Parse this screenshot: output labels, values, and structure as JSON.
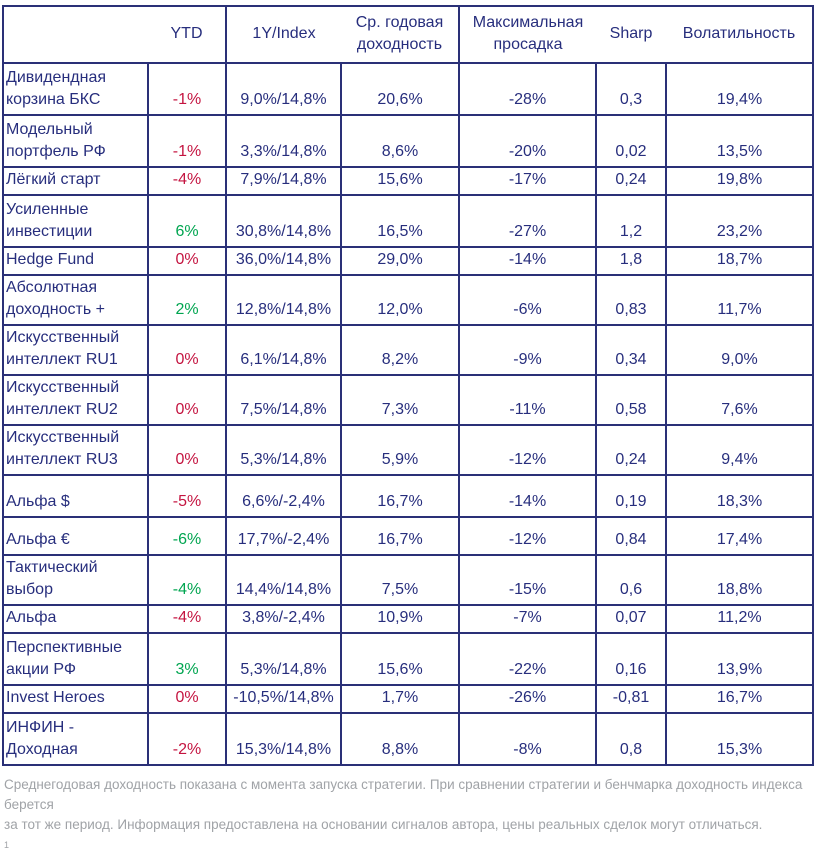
{
  "header": {
    "columns": [
      {
        "label": ""
      },
      {
        "label": "YTD"
      },
      {
        "label": "1Y/Index"
      },
      {
        "label": "Ср. годовая\nдоходность"
      },
      {
        "label": "Максимальная\nпросадка"
      },
      {
        "label": "Sharp"
      },
      {
        "label": "Волатильность"
      }
    ]
  },
  "rows": [
    {
      "name": "Дивидендная\nкорзина БКС",
      "ytd": "-1%",
      "ytd_color": "red",
      "one_year_vs_index": "9,0%/14,8%",
      "avg_annual_return": "20,6%",
      "max_drawdown": "-28%",
      "sharp": "0,3",
      "volatility": "19,4%"
    },
    {
      "name": "Модельный\nпортфель РФ",
      "ytd": "-1%",
      "ytd_color": "red",
      "one_year_vs_index": "3,3%/14,8%",
      "avg_annual_return": "8,6%",
      "max_drawdown": "-20%",
      "sharp": "0,02",
      "volatility": "13,5%"
    },
    {
      "name": "Лёгкий старт",
      "ytd": "-4%",
      "ytd_color": "red",
      "one_year_vs_index": "7,9%/14,8%",
      "avg_annual_return": "15,6%",
      "max_drawdown": "-17%",
      "sharp": "0,24",
      "volatility": "19,8%"
    },
    {
      "name": "Усиленные\nинвестиции",
      "ytd": "6%",
      "ytd_color": "green",
      "one_year_vs_index": "30,8%/14,8%",
      "avg_annual_return": "16,5%",
      "max_drawdown": "-27%",
      "sharp": "1,2",
      "volatility": "23,2%"
    },
    {
      "name": "Hedge Fund",
      "ytd": "0%",
      "ytd_color": "red",
      "one_year_vs_index": "36,0%/14,8%",
      "avg_annual_return": "29,0%",
      "max_drawdown": "-14%",
      "sharp": "1,8",
      "volatility": "18,7%"
    },
    {
      "name": "Абсолютная\nдоходность +",
      "ytd": "2%",
      "ytd_color": "green",
      "one_year_vs_index": "12,8%/14,8%",
      "avg_annual_return": "12,0%",
      "max_drawdown": "-6%",
      "sharp": "0,83",
      "volatility": "11,7%"
    },
    {
      "name": "Искусственный\nинтеллект RU1",
      "ytd": "0%",
      "ytd_color": "red",
      "one_year_vs_index": "6,1%/14,8%",
      "avg_annual_return": "8,2%",
      "max_drawdown": "-9%",
      "sharp": "0,34",
      "volatility": "9,0%"
    },
    {
      "name": "Искусственный\nинтеллект RU2",
      "ytd": "0%",
      "ytd_color": "red",
      "one_year_vs_index": "7,5%/14,8%",
      "avg_annual_return": "7,3%",
      "max_drawdown": "-11%",
      "sharp": "0,58",
      "volatility": "7,6%"
    },
    {
      "name": "Искусственный\nинтеллект RU3",
      "ytd": "0%",
      "ytd_color": "red",
      "one_year_vs_index": "5,3%/14,8%",
      "avg_annual_return": "5,9%",
      "max_drawdown": "-12%",
      "sharp": "0,24",
      "volatility": "9,4%"
    },
    {
      "name": "Альфа $",
      "ytd": "-5%",
      "ytd_color": "red",
      "one_year_vs_index": "6,6%/-2,4%",
      "avg_annual_return": "16,7%",
      "max_drawdown": "-14%",
      "sharp": "0,19",
      "volatility": "18,3%"
    },
    {
      "name": "Альфа €",
      "ytd": "-6%",
      "ytd_color": "green",
      "one_year_vs_index": "17,7%/-2,4%",
      "avg_annual_return": "16,7%",
      "max_drawdown": "-12%",
      "sharp": "0,84",
      "volatility": "17,4%"
    },
    {
      "name": "Тактический\nвыбор",
      "ytd": "-4%",
      "ytd_color": "green",
      "one_year_vs_index": "14,4%/14,8%",
      "avg_annual_return": "7,5%",
      "max_drawdown": "-15%",
      "sharp": "0,6",
      "volatility": "18,8%"
    },
    {
      "name": "Альфа",
      "ytd": "-4%",
      "ytd_color": "red",
      "one_year_vs_index": "3,8%/-2,4%",
      "avg_annual_return": "10,9%",
      "max_drawdown": "-7%",
      "sharp": "0,07",
      "volatility": "11,2%"
    },
    {
      "name": "Перспективные\nакции РФ",
      "ytd": "3%",
      "ytd_color": "green",
      "one_year_vs_index": "5,3%/14,8%",
      "avg_annual_return": "15,6%",
      "max_drawdown": "-22%",
      "sharp": "0,16",
      "volatility": "13,9%"
    },
    {
      "name": "Invest Heroes",
      "ytd": "0%",
      "ytd_color": "red",
      "one_year_vs_index": "-10,5%/14,8%",
      "avg_annual_return": "1,7%",
      "max_drawdown": "-26%",
      "sharp": "-0,81",
      "volatility": "16,7%"
    },
    {
      "name": "ИНФИН -\nДоходная",
      "ytd": "-2%",
      "ytd_color": "red",
      "one_year_vs_index": "15,3%/14,8%",
      "avg_annual_return": "8,8%",
      "max_drawdown": "-8%",
      "sharp": "0,8",
      "volatility": "15,3%"
    }
  ],
  "footer": {
    "line1": "Среднегодовая доходность показана с момента запуска стратегии. При сравнении стратегии и бенчмарка доходность индекса берется",
    "line2": "за тот же период. Информация предоставлена на основании сигналов автора, цены реальных сделок могут отличаться.",
    "footnote_marker": "1"
  },
  "colors": {
    "navy_text": "#272e7d",
    "border": "#2a3077",
    "negative_red": "#c41440",
    "positive_green": "#00a550",
    "footer_gray": "#a0a3a7"
  }
}
